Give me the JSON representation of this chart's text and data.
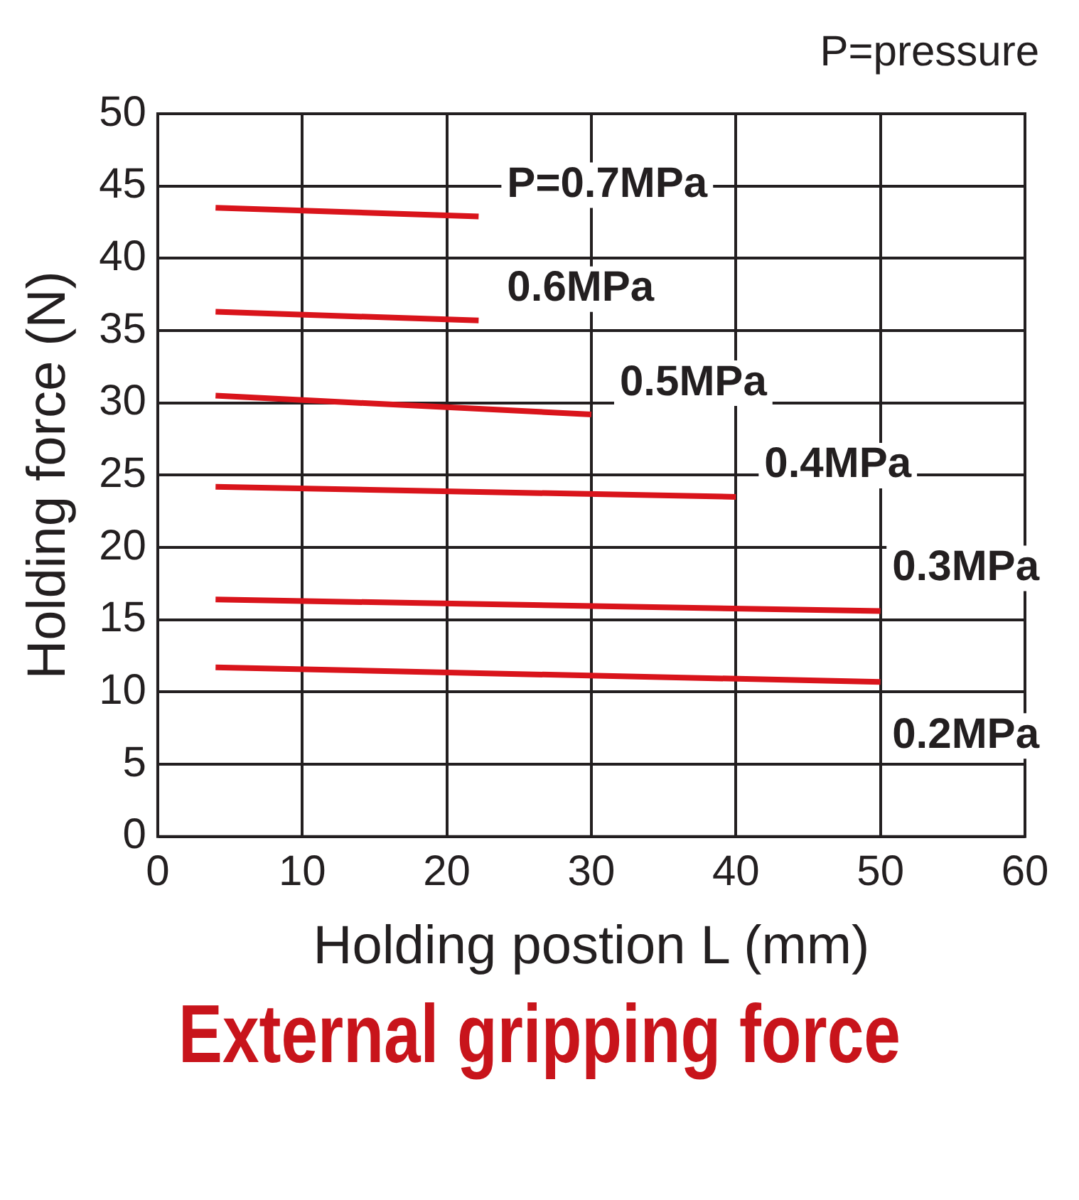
{
  "chart_data": {
    "type": "line",
    "xlabel": "Holding postion L (mm)",
    "ylabel": "Holding force (N)",
    "annotations": [
      "P=pressure",
      "External gripping force"
    ],
    "xlim": [
      0,
      60
    ],
    "xticks": [
      0,
      10,
      20,
      30,
      40,
      50,
      60
    ],
    "ylim": [
      0,
      50
    ],
    "yticks": [
      0,
      5,
      10,
      15,
      20,
      25,
      30,
      35,
      40,
      45,
      50
    ],
    "grid": true,
    "legend": false,
    "marker": "none",
    "line_style": "solid",
    "series": [
      {
        "name": "P=0.7MPa",
        "color": "#d9141b",
        "x": [
          4,
          22.2
        ],
        "values": [
          43.5,
          42.9
        ]
      },
      {
        "name": "0.6MPa",
        "color": "#d9141b",
        "x": [
          4,
          22.2
        ],
        "values": [
          36.3,
          35.7
        ]
      },
      {
        "name": "0.5MPa",
        "color": "#d9141b",
        "x": [
          4,
          30
        ],
        "values": [
          30.5,
          29.2
        ]
      },
      {
        "name": "0.4MPa",
        "color": "#d9141b",
        "x": [
          4,
          40
        ],
        "values": [
          24.2,
          23.5
        ]
      },
      {
        "name": "0.3MPa",
        "color": "#d9141b",
        "x": [
          4,
          50
        ],
        "values": [
          16.4,
          15.6
        ]
      },
      {
        "name": "0.2MPa",
        "color": "#d9141b",
        "x": [
          4,
          50
        ],
        "values": [
          11.7,
          10.7
        ]
      }
    ]
  }
}
